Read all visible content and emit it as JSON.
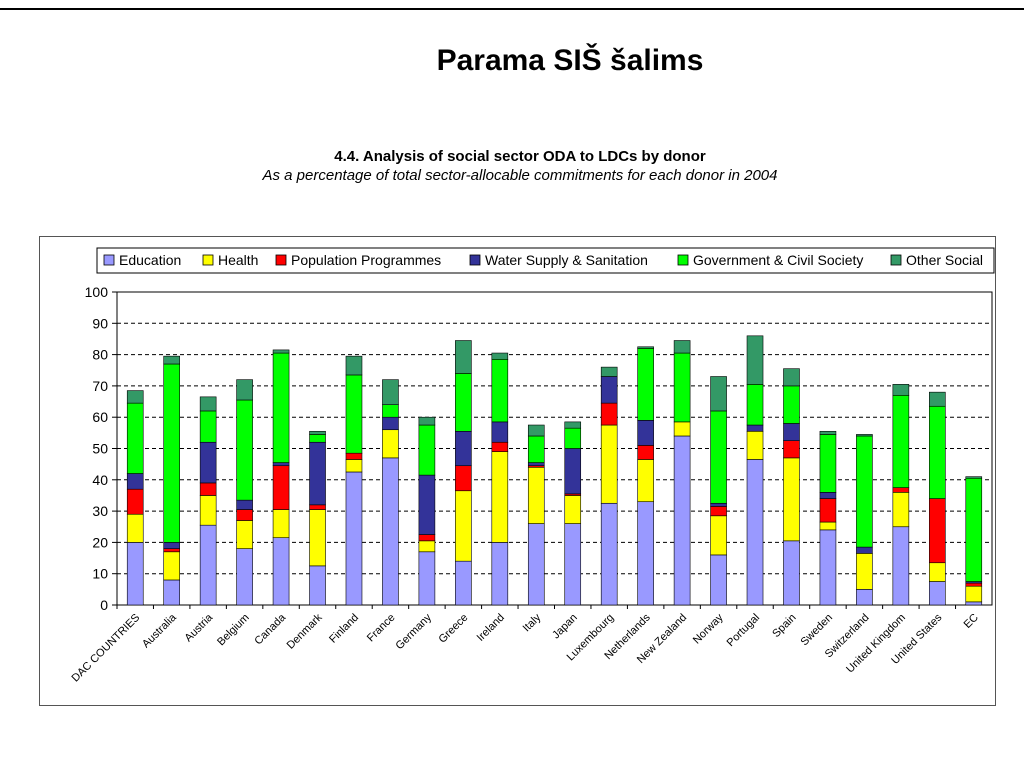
{
  "slide": {
    "title": "Parama SIŠ šalims"
  },
  "chart_data": {
    "type": "bar",
    "stacked": true,
    "title": "4.4. Analysis of social sector ODA to LDCs by donor",
    "subtitle": "As a percentage of total sector-allocable commitments for each donor in 2004",
    "categories": [
      "DAC COUNTRIES",
      "Australia",
      "Austria",
      "Belgium",
      "Canada",
      "Denmark",
      "Finland",
      "France",
      "Germany",
      "Greece",
      "Ireland",
      "Italy",
      "Japan",
      "Luxembourg",
      "Netherlands",
      "New Zealand",
      "Norway",
      "Portugal",
      "Spain",
      "Sweden",
      "Switzerland",
      "United Kingdom",
      "United States",
      "EC"
    ],
    "ylim": [
      0,
      100
    ],
    "yticks": [
      0,
      10,
      20,
      30,
      40,
      50,
      60,
      70,
      80,
      90,
      100
    ],
    "grid": true,
    "legend_position": "top",
    "series": [
      {
        "name": "Education",
        "color": "#9999ff",
        "values": [
          20,
          8,
          25.5,
          18,
          21.5,
          12.5,
          42.5,
          47,
          17,
          14,
          20,
          26,
          26,
          32.5,
          33,
          54,
          16,
          46.5,
          20.5,
          24,
          5,
          25,
          7.5,
          1
        ]
      },
      {
        "name": "Health",
        "color": "#ffff00",
        "values": [
          9,
          9,
          9.5,
          9,
          9,
          18,
          4,
          9,
          3.5,
          22.5,
          29,
          18,
          9,
          25,
          13.5,
          4.5,
          12.5,
          9,
          26.5,
          2.5,
          11.5,
          11,
          6,
          5
        ]
      },
      {
        "name": "Population Programmes",
        "color": "#ff0000",
        "values": [
          8,
          1,
          4,
          3.5,
          14,
          1.5,
          2,
          0,
          2,
          8,
          3,
          0.5,
          0.5,
          7,
          4.5,
          0,
          3,
          0,
          5.5,
          7.5,
          0,
          1.5,
          20.5,
          1
        ]
      },
      {
        "name": "Water Supply & Sanitation",
        "color": "#333399",
        "values": [
          5,
          2,
          13,
          3,
          1,
          20,
          0,
          4,
          19,
          11,
          6.5,
          1,
          14.5,
          8.5,
          8,
          0,
          1,
          2,
          5.5,
          2,
          2,
          0,
          0,
          0.5
        ]
      },
      {
        "name": "Government & Civil Society",
        "color": "#00ff00",
        "values": [
          22.5,
          57,
          10,
          32,
          35,
          2.5,
          25,
          4,
          16,
          18.5,
          20,
          8.5,
          6.5,
          0,
          23,
          22,
          29.5,
          13,
          12,
          18.5,
          35.5,
          29.5,
          29.5,
          33
        ]
      },
      {
        "name": "Other Social",
        "color": "#339966",
        "values": [
          4,
          2.5,
          4.5,
          6.5,
          1,
          1,
          6,
          8,
          2.5,
          10.5,
          2,
          3.5,
          2,
          3,
          0.5,
          4,
          11,
          15.5,
          5.5,
          1,
          0.5,
          3.5,
          4.5,
          0.5
        ]
      }
    ]
  }
}
